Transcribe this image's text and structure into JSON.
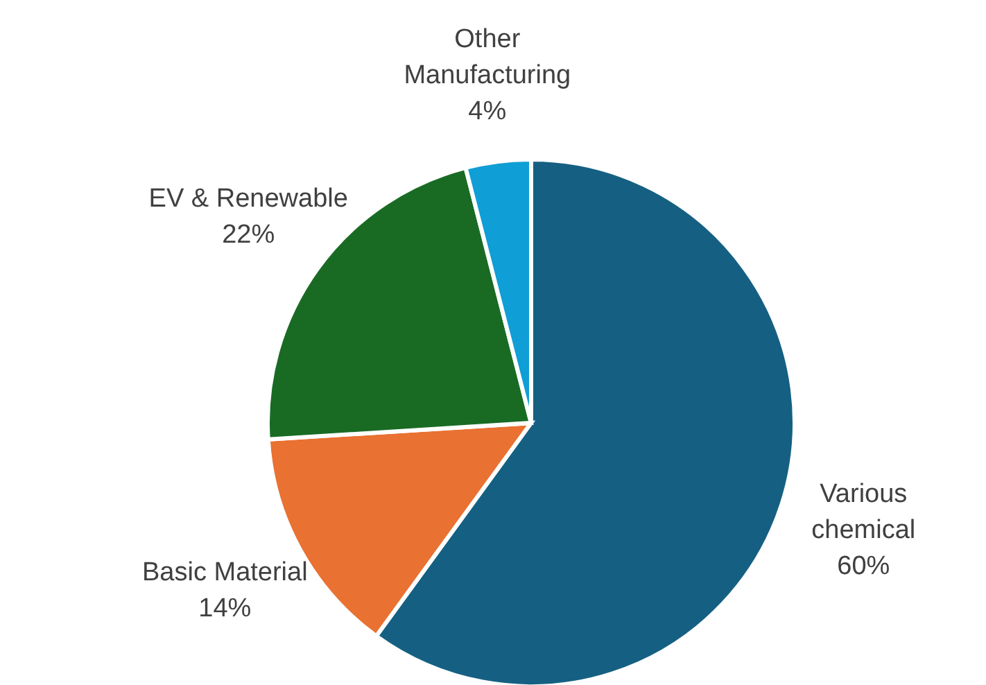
{
  "chart_data": {
    "type": "pie",
    "categories": [
      "Various chemical",
      "Basic Material",
      "EV & Renewable",
      "Other Manufacturing"
    ],
    "values": [
      60,
      14,
      22,
      4
    ],
    "colors": [
      "#156082",
      "#e97132",
      "#196b24",
      "#0f9ed5"
    ],
    "value_labels": [
      "60%",
      "14%",
      "22%",
      "4%"
    ],
    "legend": false
  }
}
